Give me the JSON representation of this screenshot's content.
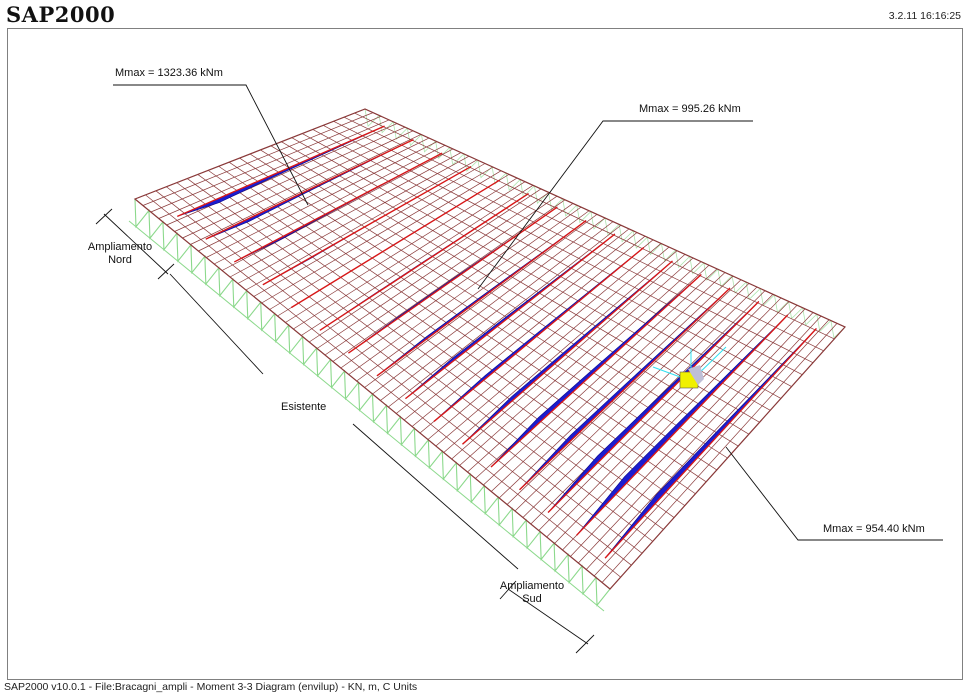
{
  "app": {
    "title": "SAP2000",
    "timestamp": "3.2.11 16:16:25"
  },
  "status_bar": {
    "text": "SAP2000 v10.0.1 - File:Bracagni_ampli -   Moment 3-3 Diagram   (envilup) - KN, m, C Units"
  },
  "annotations": {
    "mmax_left": "Mmax = 1323.36 kNm",
    "mmax_center": "Mmax = 995.26 kNm",
    "mmax_right": "Mmax = 954.40 kNm",
    "ampliamento_nord_1": "Ampliamento",
    "ampliamento_nord_2": "Nord",
    "esistente": "Esistente",
    "ampliamento_sud_1": "Ampliamento",
    "ampliamento_sud_2": "Sud"
  },
  "colors": {
    "grid": "#8a3a3a",
    "moment_fill": "#1c1ccf",
    "beam": "#d81818",
    "support": "#8cd98c",
    "axis_yellow": "#f0f000",
    "axis_cyan": "#30e0f0"
  }
}
